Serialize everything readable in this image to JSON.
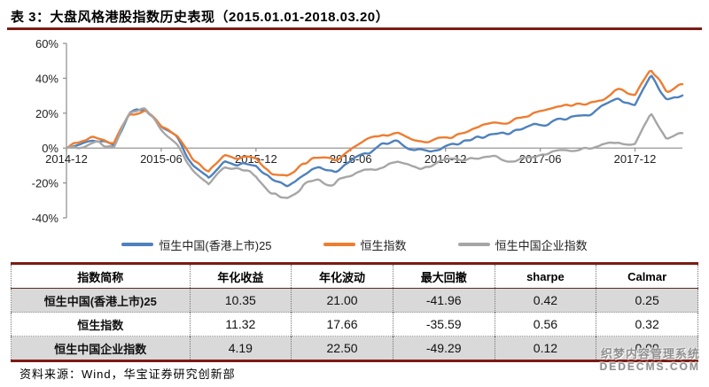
{
  "page": {
    "title": "表 3：大盘风格港股指数历史表现（2015.01.01-2018.03.20）"
  },
  "chart_data": {
    "type": "line",
    "title": "",
    "x_unit": "month",
    "x": [
      "2014-12",
      "2015-01",
      "2015-02",
      "2015-03",
      "2015-04",
      "2015-05",
      "2015-06",
      "2015-07",
      "2015-08",
      "2015-09",
      "2015-10",
      "2015-11",
      "2015-12",
      "2016-01",
      "2016-02",
      "2016-03",
      "2016-04",
      "2016-05",
      "2016-06",
      "2016-07",
      "2016-08",
      "2016-09",
      "2016-10",
      "2016-11",
      "2016-12",
      "2017-01",
      "2017-02",
      "2017-03",
      "2017-04",
      "2017-05",
      "2017-06",
      "2017-07",
      "2017-08",
      "2017-09",
      "2017-10",
      "2017-11",
      "2017-12",
      "2018-01",
      "2018-02",
      "2018-03"
    ],
    "x_tick_labels": [
      "2014-12",
      "2015-06",
      "2015-12",
      "2016-06",
      "2016-12",
      "2017-06",
      "2017-12"
    ],
    "x_tick_months": [
      0,
      6,
      12,
      18,
      24,
      30,
      36
    ],
    "ylim": [
      -40,
      60
    ],
    "yticks": [
      60,
      40,
      20,
      0,
      -20,
      -40
    ],
    "y_suffix": "%",
    "grid": false,
    "legend_position": "bottom",
    "series": [
      {
        "name": "恒生中国(香港上市)25",
        "color": "#4e81bd",
        "values": [
          0,
          3,
          4,
          2,
          22,
          24,
          14,
          5,
          -10,
          -16,
          -7,
          -9,
          -11,
          -19,
          -21,
          -15,
          -11,
          -13,
          -7,
          -2,
          2,
          3,
          0,
          -2,
          0,
          3,
          6,
          7,
          8,
          11,
          14,
          17,
          18,
          20,
          23,
          27,
          25,
          41,
          26,
          30
        ]
      },
      {
        "name": "恒生指数",
        "color": "#ed7d31",
        "values": [
          0,
          4,
          5,
          3,
          19,
          21,
          13,
          7,
          -6,
          -12,
          -3,
          -6,
          -6,
          -14,
          -16,
          -8,
          -6,
          -8,
          -1,
          4,
          8,
          9,
          6,
          4,
          5,
          9,
          12,
          13,
          14,
          17,
          20,
          23,
          24,
          26,
          29,
          33,
          31,
          44,
          33,
          36
        ]
      },
      {
        "name": "恒生中国企业指数",
        "color": "#a6a6a6",
        "values": [
          0,
          2,
          3,
          1,
          21,
          22,
          11,
          2,
          -14,
          -21,
          -11,
          -13,
          -15,
          -27,
          -30,
          -20,
          -18,
          -20,
          -15,
          -12,
          -10,
          -9,
          -11,
          -12,
          -8,
          -7,
          -5,
          -6,
          -7,
          -5,
          -4,
          -2,
          -1,
          0,
          2,
          4,
          3,
          21,
          6,
          8
        ]
      }
    ]
  },
  "table": {
    "headers": [
      "指数简称",
      "年化收益",
      "年化波动",
      "最大回撤",
      "sharpe",
      "Calmar"
    ],
    "rows": [
      {
        "name": "恒生中国(香港上市)25",
        "values": [
          "10.35",
          "21.00",
          "-41.96",
          "0.42",
          "0.25"
        ]
      },
      {
        "name": "恒生指数",
        "values": [
          "11.32",
          "17.66",
          "-35.59",
          "0.56",
          "0.32"
        ]
      },
      {
        "name": "恒生中国企业指数",
        "values": [
          "4.19",
          "22.50",
          "-49.29",
          "0.12",
          "0.09"
        ]
      }
    ]
  },
  "footer": {
    "source": "资料来源：Wind，华宝证券研究创新部"
  },
  "watermark": {
    "line1": "织梦内容管理系统",
    "line2": "DEDECMS.COM"
  },
  "colors": {
    "accent_rule": "#7b1b14",
    "axis": "#8c8c8c",
    "shade_row": "#d9d9d9"
  }
}
